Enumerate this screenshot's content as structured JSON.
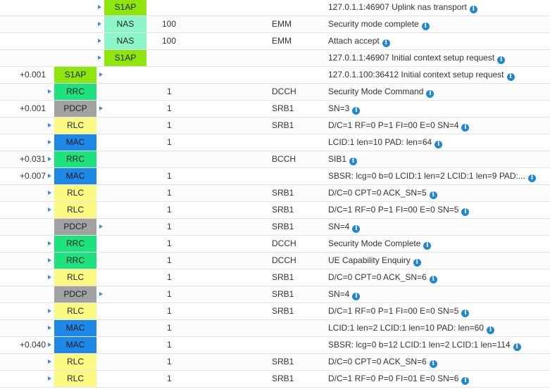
{
  "colors": {
    "S1AP": "#8ee60e",
    "NAS": "#8cf5c9",
    "RRC": "#1ee27d",
    "PDCP": "#a2a2a2",
    "RLC": "#fafa82",
    "MAC": "#1e88e6",
    "arrow": "#3a8fd8",
    "info": "#1f87d5"
  },
  "icons": {
    "arrow": "triangle-right-icon",
    "info": "info-circle-icon"
  },
  "rows": [
    {
      "time": "",
      "layer": "S1AP",
      "col": "s1ap_l",
      "arrow": "left",
      "idx": "",
      "chan": "",
      "msg": "127.0.1.1:46907 Uplink nas transport"
    },
    {
      "time": "",
      "layer": "NAS",
      "col": "nas",
      "arrow": "left",
      "idx": "100",
      "chan": "EMM",
      "msg": "Security mode complete"
    },
    {
      "time": "",
      "layer": "NAS",
      "col": "nas",
      "arrow": "left",
      "idx": "100",
      "chan": "EMM",
      "msg": "Attach accept"
    },
    {
      "time": "",
      "layer": "S1AP",
      "col": "s1ap_l",
      "arrow": "left",
      "idx": "",
      "chan": "",
      "msg": "127.0.1.1:46907 Initial context setup request"
    },
    {
      "time": "+0.001",
      "layer": "S1AP",
      "col": "ue",
      "arrow": "right",
      "idx": "",
      "chan": "",
      "msg": "127.0.1.100:36412 Initial context setup request"
    },
    {
      "time": "",
      "layer": "RRC",
      "col": "ue",
      "arrow": "left",
      "idx": "1",
      "chan": "DCCH",
      "msg": "Security Mode Command"
    },
    {
      "time": "+0.001",
      "layer": "PDCP",
      "col": "ue",
      "arrow": "right",
      "idx": "1",
      "chan": "SRB1",
      "msg": "SN=3"
    },
    {
      "time": "",
      "layer": "RLC",
      "col": "ue",
      "arrow": "left",
      "idx": "1",
      "chan": "SRB1",
      "msg": "D/C=1 RF=0 P=1 FI=00 E=0 SN=4"
    },
    {
      "time": "",
      "layer": "MAC",
      "col": "ue",
      "arrow": "left",
      "idx": "1",
      "chan": "",
      "msg": "LCID:1 len=10 PAD: len=64"
    },
    {
      "time": "+0.031",
      "layer": "RRC",
      "col": "ue",
      "arrow": "left",
      "idx": "",
      "chan": "BCCH",
      "msg": "SIB1"
    },
    {
      "time": "+0.007",
      "layer": "MAC",
      "col": "ue",
      "arrow": "left",
      "idx": "1",
      "chan": "",
      "msg": "SBSR: lcg=0 b=0 LCID:1 len=2 LCID:1 len=9 PAD:..."
    },
    {
      "time": "",
      "layer": "RLC",
      "col": "ue",
      "arrow": "left",
      "idx": "1",
      "chan": "SRB1",
      "msg": "D/C=0 CPT=0 ACK_SN=5"
    },
    {
      "time": "",
      "layer": "RLC",
      "col": "ue",
      "arrow": "left",
      "idx": "1",
      "chan": "SRB1",
      "msg": "D/C=1 RF=0 P=1 FI=00 E=0 SN=5"
    },
    {
      "time": "",
      "layer": "PDCP",
      "col": "ue",
      "arrow": "right",
      "idx": "1",
      "chan": "SRB1",
      "msg": "SN=4"
    },
    {
      "time": "",
      "layer": "RRC",
      "col": "ue",
      "arrow": "left",
      "idx": "1",
      "chan": "DCCH",
      "msg": "Security Mode Complete"
    },
    {
      "time": "",
      "layer": "RRC",
      "col": "ue",
      "arrow": "left",
      "idx": "1",
      "chan": "DCCH",
      "msg": "UE Capability Enquiry"
    },
    {
      "time": "",
      "layer": "RLC",
      "col": "ue",
      "arrow": "left",
      "idx": "1",
      "chan": "SRB1",
      "msg": "D/C=0 CPT=0 ACK_SN=6"
    },
    {
      "time": "",
      "layer": "PDCP",
      "col": "ue",
      "arrow": "right",
      "idx": "1",
      "chan": "SRB1",
      "msg": "SN=4"
    },
    {
      "time": "",
      "layer": "RLC",
      "col": "ue",
      "arrow": "left",
      "idx": "1",
      "chan": "SRB1",
      "msg": "D/C=1 RF=0 P=1 FI=00 E=0 SN=5"
    },
    {
      "time": "",
      "layer": "MAC",
      "col": "ue",
      "arrow": "left",
      "idx": "1",
      "chan": "",
      "msg": "LCID:1 len=2 LCID:1 len=10 PAD: len=60"
    },
    {
      "time": "+0.040",
      "layer": "MAC",
      "col": "ue",
      "arrow": "left",
      "idx": "1",
      "chan": "",
      "msg": "SBSR: lcg=0 b=12 LCID:1 len=2 LCID:1 len=114"
    },
    {
      "time": "",
      "layer": "RLC",
      "col": "ue",
      "arrow": "left",
      "idx": "1",
      "chan": "SRB1",
      "msg": "D/C=0 CPT=0 ACK_SN=6"
    },
    {
      "time": "",
      "layer": "RLC",
      "col": "ue",
      "arrow": "left",
      "idx": "1",
      "chan": "SRB1",
      "msg": "D/C=1 RF=0 P=0 FI=01 E=0 SN=6"
    }
  ]
}
